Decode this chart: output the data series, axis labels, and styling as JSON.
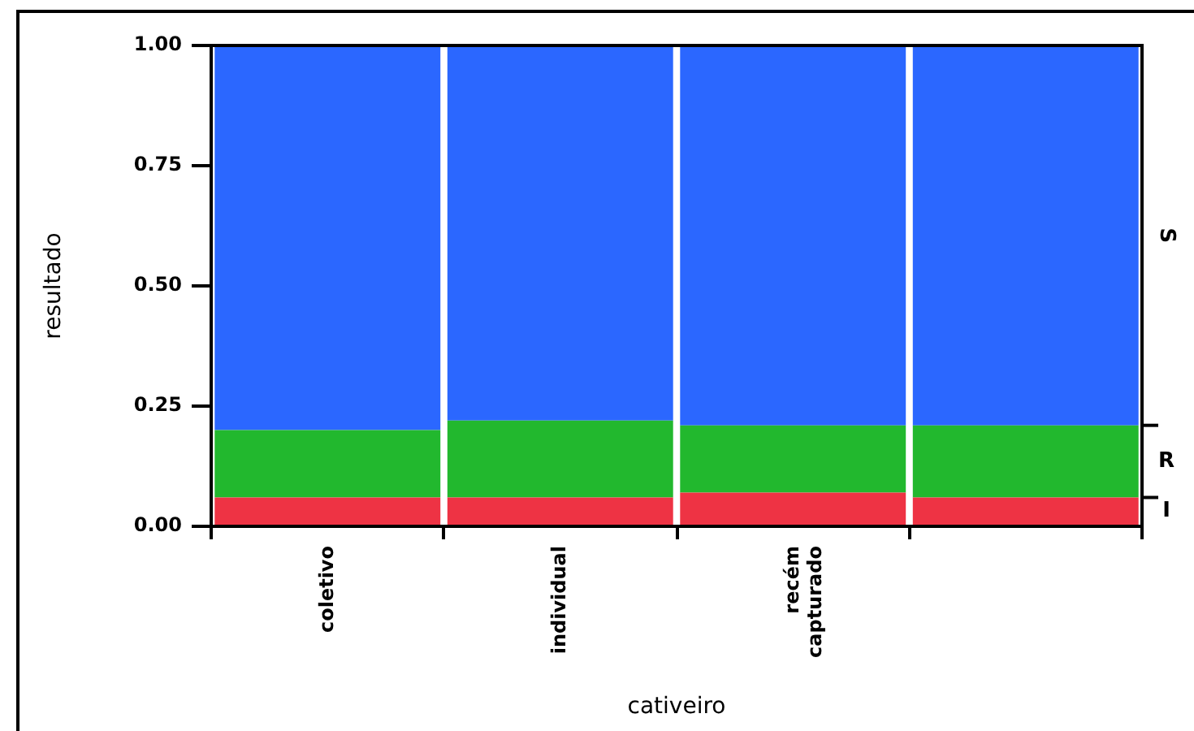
{
  "chart_data": {
    "type": "bar",
    "xlabel": "cativeiro",
    "ylabel": "resultado",
    "categories": [
      "coletivo",
      "individual",
      "recém capturado",
      null
    ],
    "stacked": true,
    "legend": "right",
    "series": [
      {
        "name": "I",
        "color": "#ee3344",
        "values": [
          0.06,
          0.06,
          0.07,
          0.06
        ]
      },
      {
        "name": "R",
        "color": "#22b82e",
        "values": [
          0.14,
          0.16,
          0.14,
          0.15
        ]
      },
      {
        "name": "S",
        "color": "#2b67ff",
        "values": [
          0.8,
          0.78,
          0.79,
          0.79
        ]
      }
    ],
    "ylim": [
      0,
      1
    ],
    "yticks": [
      {
        "value": 0,
        "label": "0.00"
      },
      {
        "value": 0.25,
        "label": "0.25"
      },
      {
        "value": 0.5,
        "label": "0.50"
      },
      {
        "value": 0.75,
        "label": "0.75"
      },
      {
        "value": 1,
        "label": "1.00"
      }
    ]
  }
}
